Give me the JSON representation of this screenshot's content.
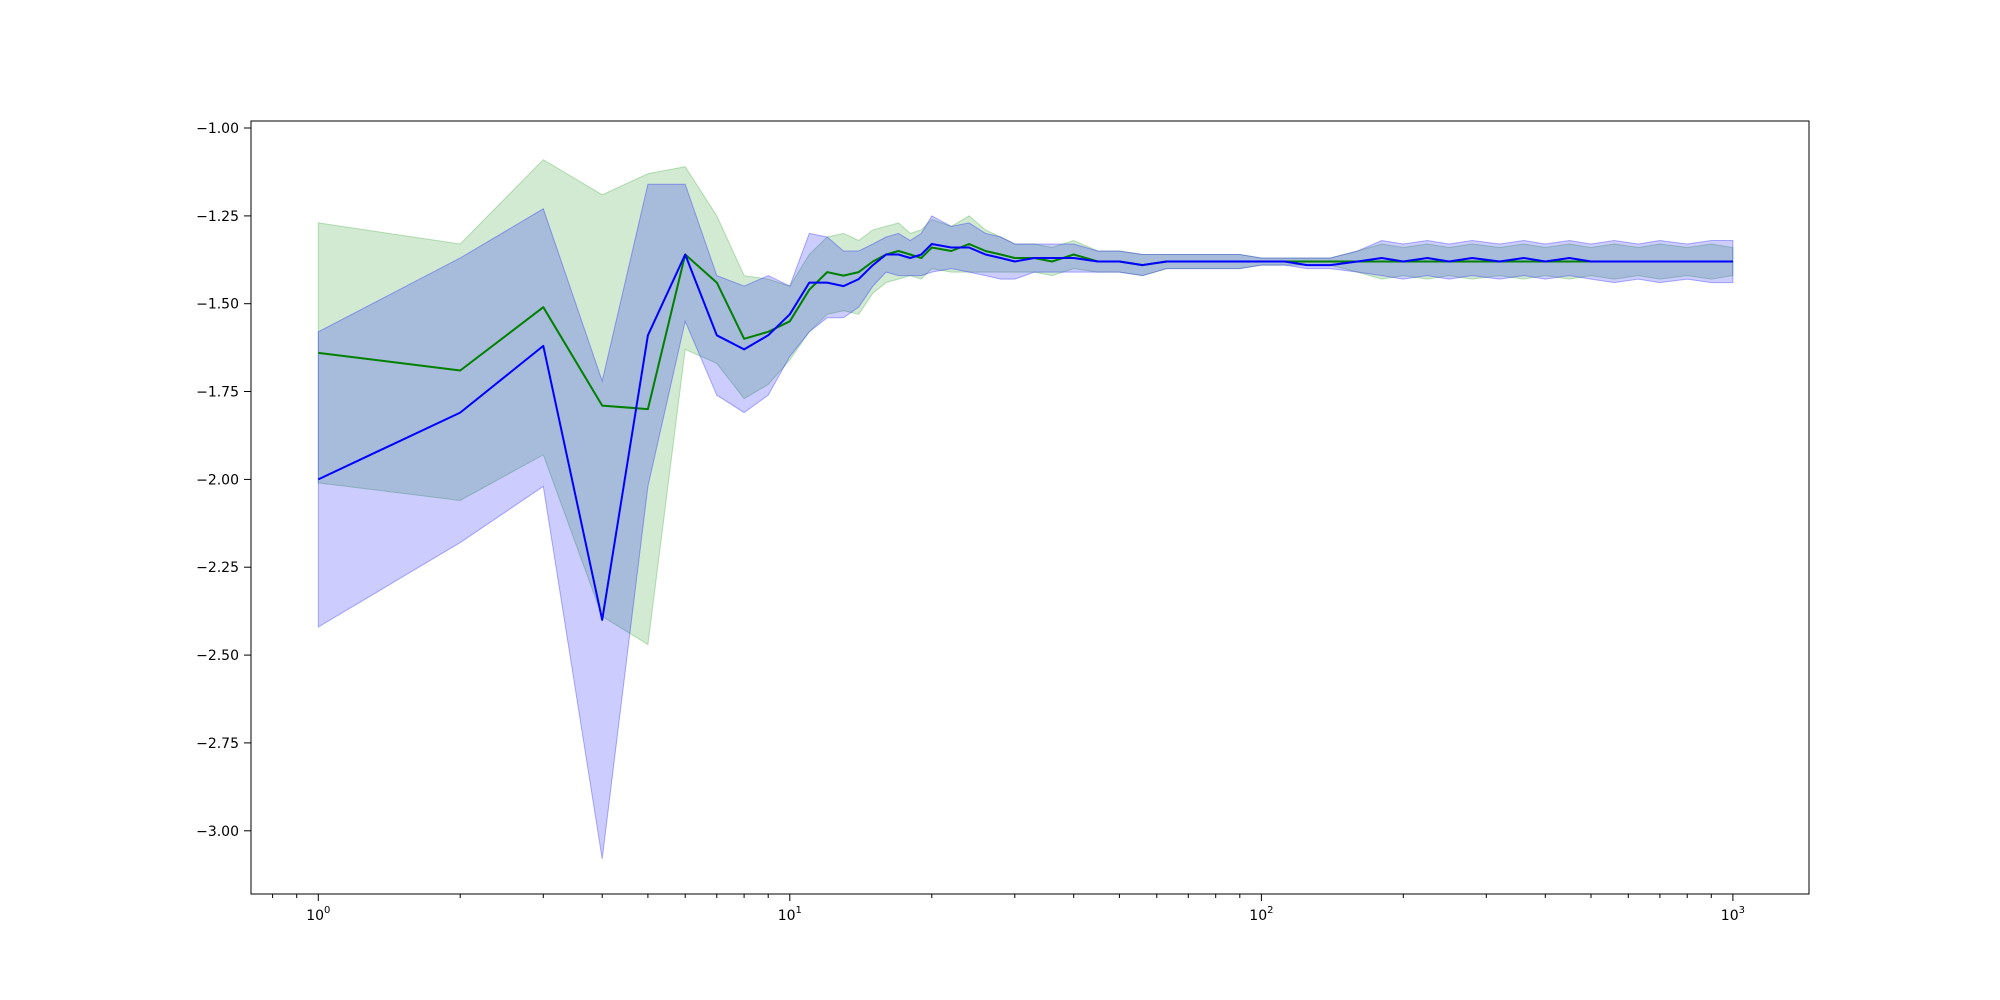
{
  "chart_data": {
    "type": "line",
    "title": "",
    "xlabel": "",
    "ylabel": "",
    "x_scale": "log",
    "xlim": [
      0.72,
      1450
    ],
    "ylim": [
      -3.18,
      -0.98
    ],
    "grid": false,
    "x_ticks": [
      {
        "value": 1,
        "base": "10",
        "exp": "0"
      },
      {
        "value": 10,
        "base": "10",
        "exp": "1"
      },
      {
        "value": 100,
        "base": "10",
        "exp": "2"
      },
      {
        "value": 1000,
        "base": "10",
        "exp": "3"
      }
    ],
    "y_ticks": [
      {
        "value": -1.0,
        "label": "−1.00"
      },
      {
        "value": -1.25,
        "label": "−1.25"
      },
      {
        "value": -1.5,
        "label": "−1.50"
      },
      {
        "value": -1.75,
        "label": "−1.75"
      },
      {
        "value": -2.0,
        "label": "−2.00"
      },
      {
        "value": -2.25,
        "label": "−2.25"
      },
      {
        "value": -2.5,
        "label": "−2.50"
      },
      {
        "value": -2.75,
        "label": "−2.75"
      },
      {
        "value": -3.0,
        "label": "−3.00"
      }
    ],
    "series": [
      {
        "color": "#008000",
        "band_color": "#2ca02c",
        "band_opacity": 0.22,
        "x": [
          1,
          2,
          3,
          4,
          5,
          6,
          7,
          8,
          9,
          10,
          11,
          12,
          13,
          14,
          15,
          16,
          17,
          18,
          19,
          20,
          22,
          24,
          26,
          28,
          30,
          33,
          36,
          40,
          45,
          50,
          56,
          63,
          70,
          80,
          90,
          100,
          112,
          125,
          140,
          160,
          180,
          200,
          225,
          250,
          280,
          320,
          360,
          400,
          450,
          500,
          560,
          630,
          700,
          800,
          900,
          1000
        ],
        "mean": [
          -1.64,
          -1.69,
          -1.51,
          -1.79,
          -1.8,
          -1.36,
          -1.44,
          -1.6,
          -1.58,
          -1.55,
          -1.46,
          -1.41,
          -1.42,
          -1.41,
          -1.38,
          -1.36,
          -1.35,
          -1.36,
          -1.37,
          -1.34,
          -1.35,
          -1.33,
          -1.35,
          -1.36,
          -1.37,
          -1.37,
          -1.38,
          -1.36,
          -1.38,
          -1.38,
          -1.39,
          -1.38,
          -1.38,
          -1.38,
          -1.38,
          -1.38,
          -1.38,
          -1.38,
          -1.38,
          -1.38,
          -1.38,
          -1.38,
          -1.38,
          -1.38,
          -1.38,
          -1.38,
          -1.38,
          -1.38,
          -1.38,
          -1.38,
          -1.38,
          -1.38,
          -1.38,
          -1.38,
          -1.38,
          -1.38
        ],
        "upper": [
          -1.27,
          -1.33,
          -1.09,
          -1.19,
          -1.13,
          -1.11,
          -1.25,
          -1.42,
          -1.43,
          -1.45,
          -1.36,
          -1.31,
          -1.3,
          -1.32,
          -1.29,
          -1.28,
          -1.27,
          -1.3,
          -1.29,
          -1.26,
          -1.28,
          -1.25,
          -1.29,
          -1.31,
          -1.33,
          -1.33,
          -1.34,
          -1.32,
          -1.35,
          -1.35,
          -1.36,
          -1.36,
          -1.36,
          -1.36,
          -1.36,
          -1.37,
          -1.37,
          -1.37,
          -1.37,
          -1.35,
          -1.33,
          -1.34,
          -1.33,
          -1.34,
          -1.33,
          -1.34,
          -1.33,
          -1.34,
          -1.33,
          -1.34,
          -1.33,
          -1.34,
          -1.33,
          -1.34,
          -1.33,
          -1.34
        ],
        "lower": [
          -2.01,
          -2.06,
          -1.93,
          -2.39,
          -2.47,
          -1.63,
          -1.67,
          -1.77,
          -1.73,
          -1.66,
          -1.58,
          -1.53,
          -1.52,
          -1.53,
          -1.47,
          -1.44,
          -1.43,
          -1.42,
          -1.43,
          -1.4,
          -1.41,
          -1.41,
          -1.41,
          -1.41,
          -1.41,
          -1.41,
          -1.42,
          -1.4,
          -1.41,
          -1.41,
          -1.42,
          -1.4,
          -1.4,
          -1.4,
          -1.4,
          -1.39,
          -1.39,
          -1.39,
          -1.39,
          -1.41,
          -1.43,
          -1.42,
          -1.43,
          -1.42,
          -1.43,
          -1.42,
          -1.43,
          -1.42,
          -1.43,
          -1.42,
          -1.43,
          -1.42,
          -1.43,
          -1.42,
          -1.43,
          -1.42
        ]
      },
      {
        "color": "#0000ff",
        "band_color": "#0000ff",
        "band_opacity": 0.2,
        "x": [
          1,
          2,
          3,
          4,
          5,
          6,
          7,
          8,
          9,
          10,
          11,
          12,
          13,
          14,
          15,
          16,
          17,
          18,
          19,
          20,
          22,
          24,
          26,
          28,
          30,
          33,
          36,
          40,
          45,
          50,
          56,
          63,
          70,
          80,
          90,
          100,
          112,
          125,
          140,
          160,
          180,
          200,
          225,
          250,
          280,
          320,
          360,
          400,
          450,
          500,
          560,
          630,
          700,
          800,
          900,
          1000
        ],
        "mean": [
          -2.0,
          -1.81,
          -1.62,
          -2.4,
          -1.59,
          -1.36,
          -1.59,
          -1.63,
          -1.59,
          -1.53,
          -1.44,
          -1.44,
          -1.45,
          -1.43,
          -1.39,
          -1.36,
          -1.36,
          -1.37,
          -1.36,
          -1.33,
          -1.34,
          -1.34,
          -1.36,
          -1.37,
          -1.38,
          -1.37,
          -1.37,
          -1.37,
          -1.38,
          -1.38,
          -1.39,
          -1.38,
          -1.38,
          -1.38,
          -1.38,
          -1.38,
          -1.38,
          -1.39,
          -1.39,
          -1.38,
          -1.37,
          -1.38,
          -1.37,
          -1.38,
          -1.37,
          -1.38,
          -1.37,
          -1.38,
          -1.37,
          -1.38,
          -1.38,
          -1.38,
          -1.38,
          -1.38,
          -1.38,
          -1.38
        ],
        "upper": [
          -1.58,
          -1.37,
          -1.23,
          -1.72,
          -1.16,
          -1.16,
          -1.42,
          -1.45,
          -1.42,
          -1.45,
          -1.3,
          -1.31,
          -1.35,
          -1.35,
          -1.33,
          -1.31,
          -1.3,
          -1.32,
          -1.3,
          -1.25,
          -1.28,
          -1.27,
          -1.3,
          -1.31,
          -1.33,
          -1.33,
          -1.33,
          -1.33,
          -1.35,
          -1.35,
          -1.36,
          -1.36,
          -1.36,
          -1.36,
          -1.36,
          -1.37,
          -1.37,
          -1.37,
          -1.37,
          -1.35,
          -1.32,
          -1.33,
          -1.32,
          -1.33,
          -1.32,
          -1.33,
          -1.32,
          -1.33,
          -1.32,
          -1.33,
          -1.32,
          -1.33,
          -1.32,
          -1.33,
          -1.32,
          -1.32
        ],
        "lower": [
          -2.42,
          -2.18,
          -2.02,
          -3.08,
          -2.02,
          -1.55,
          -1.76,
          -1.81,
          -1.76,
          -1.65,
          -1.58,
          -1.54,
          -1.54,
          -1.51,
          -1.45,
          -1.41,
          -1.42,
          -1.42,
          -1.42,
          -1.41,
          -1.4,
          -1.41,
          -1.42,
          -1.43,
          -1.43,
          -1.41,
          -1.41,
          -1.41,
          -1.41,
          -1.41,
          -1.42,
          -1.4,
          -1.4,
          -1.4,
          -1.4,
          -1.39,
          -1.39,
          -1.4,
          -1.4,
          -1.41,
          -1.42,
          -1.43,
          -1.42,
          -1.43,
          -1.42,
          -1.43,
          -1.42,
          -1.43,
          -1.42,
          -1.43,
          -1.44,
          -1.43,
          -1.44,
          -1.43,
          -1.44,
          -1.44
        ]
      }
    ]
  }
}
